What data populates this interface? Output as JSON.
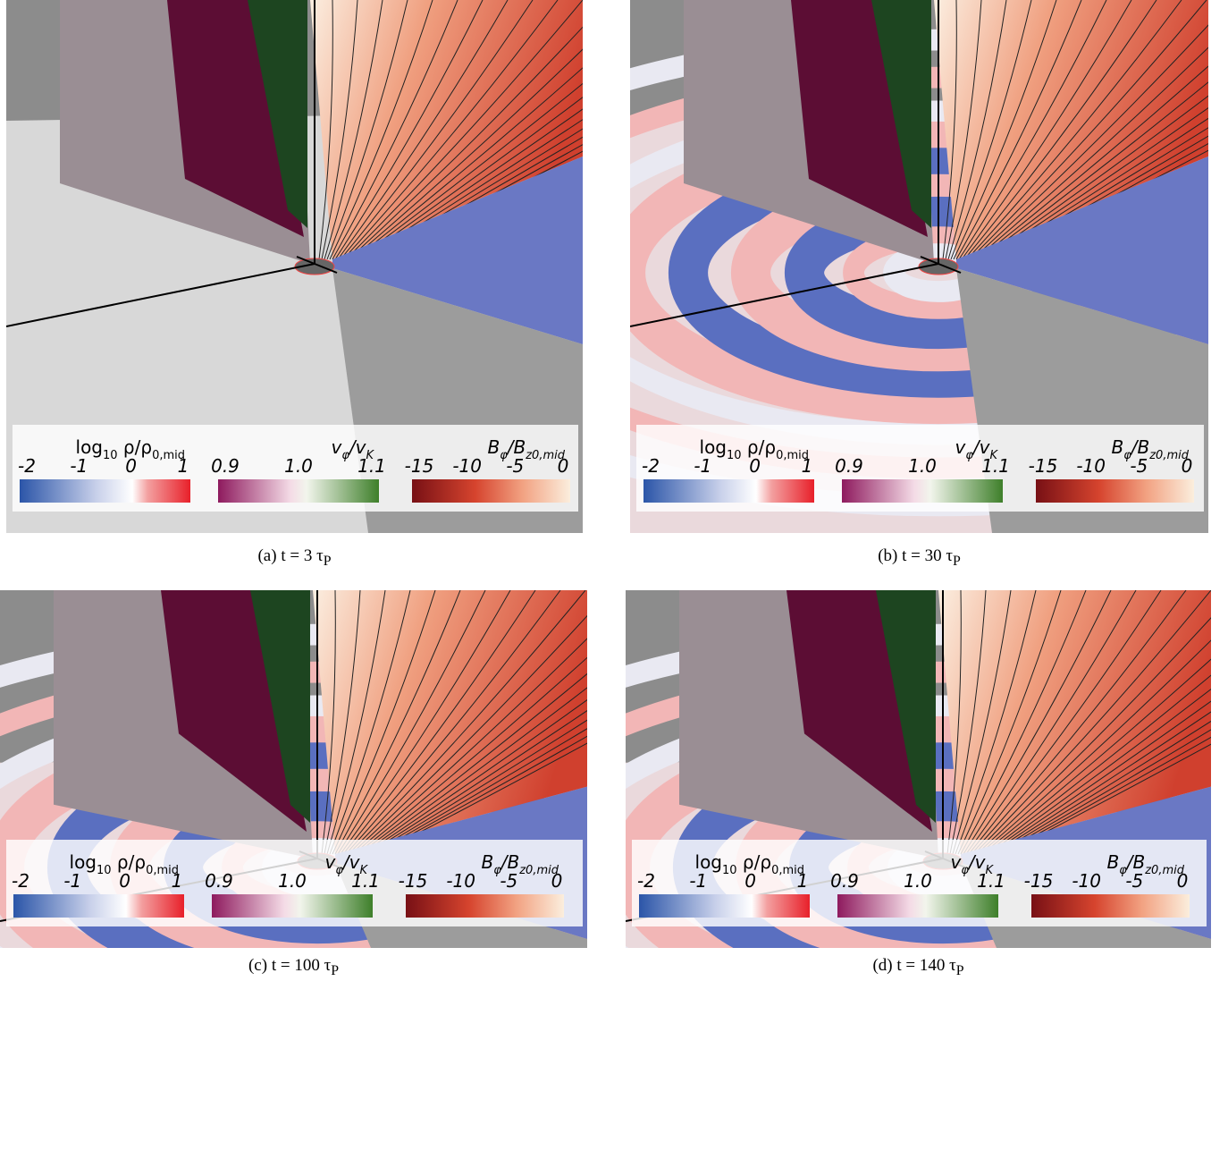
{
  "panels": [
    {
      "caption": [
        "(a) t = 3 τ",
        "P"
      ]
    },
    {
      "caption": [
        "(b) t = 30 τ",
        "P"
      ]
    },
    {
      "caption": [
        "(c) t = 100 τ",
        "P"
      ]
    },
    {
      "caption": [
        "(d) t = 140 τ",
        "P"
      ]
    }
  ],
  "colorbars": [
    {
      "label": [
        "log",
        "10",
        " ρ/ρ",
        "0,mid"
      ],
      "ticks": [
        "-2",
        "-1",
        "0",
        "1"
      ]
    },
    {
      "label": [
        "v",
        "φ",
        "/v",
        "K"
      ],
      "ticks": [
        "0.9",
        "1.0",
        "1.1"
      ]
    },
    {
      "label": [
        "B",
        "φ",
        "/B",
        "z0,mid"
      ],
      "ticks": [
        "-15",
        "-10",
        "-5",
        "0"
      ]
    }
  ]
}
